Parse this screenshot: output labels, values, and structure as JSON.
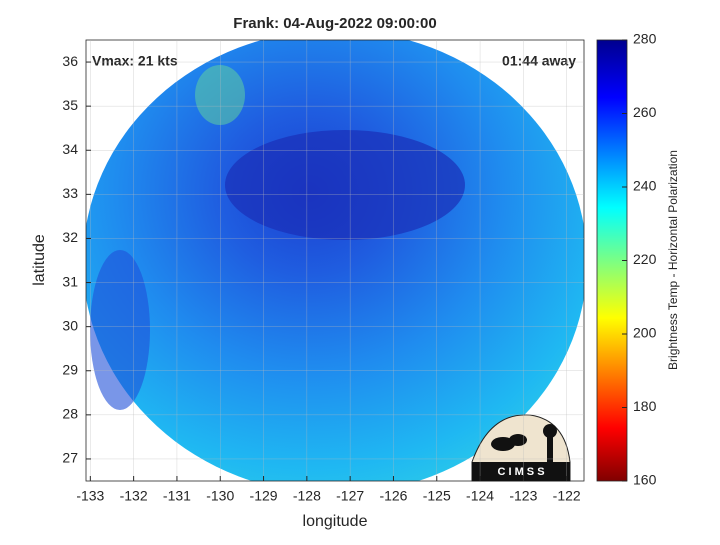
{
  "map": {
    "title": "Frank: 04-Aug-2022 09:00:00",
    "annotations": {
      "left": "Vmax: 21 kts",
      "right": "01:44 away"
    },
    "xlabel": "longitude",
    "ylabel": "latitude",
    "xlim": [
      -133.1,
      -121.6
    ],
    "ylim": [
      26.5,
      36.5
    ],
    "xticks": [
      -133,
      -132,
      -131,
      -130,
      -129,
      -128,
      -127,
      -126,
      -125,
      -124,
      -123,
      -122
    ],
    "yticks": [
      27,
      28,
      29,
      30,
      31,
      32,
      33,
      34,
      35,
      36
    ],
    "grid": true,
    "colorbar": {
      "label": "Brightness Temp - Horizontal Polarization",
      "lim": [
        160,
        280
      ],
      "ticks": [
        160,
        180,
        200,
        220,
        240,
        260,
        280
      ]
    },
    "logo": "C I M S S"
  }
}
